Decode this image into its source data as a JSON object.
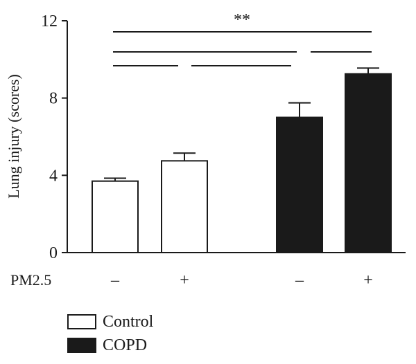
{
  "chart_data": {
    "type": "bar",
    "ylabel": "Lung injury (scores)",
    "ylim": [
      0,
      12
    ],
    "yticks": [
      "0",
      "4",
      "8",
      "12"
    ],
    "ytick_values": [
      0,
      4,
      8,
      12
    ],
    "treatment_label": "PM2.5",
    "categories": [
      "–",
      "+",
      "–",
      "+"
    ],
    "bars": [
      {
        "group": "Control",
        "pm25": "–",
        "value": 3.7,
        "error": 0.15,
        "fill": "#ffffff"
      },
      {
        "group": "Control",
        "pm25": "+",
        "value": 4.75,
        "error": 0.4,
        "fill": "#ffffff"
      },
      {
        "group": "COPD",
        "pm25": "–",
        "value": 7.0,
        "error": 0.75,
        "fill": "#1a1a1a"
      },
      {
        "group": "COPD",
        "pm25": "+",
        "value": 9.25,
        "error": 0.3,
        "fill": "#1a1a1a"
      }
    ],
    "significance": "**",
    "comparisons": [
      {
        "from": 0,
        "to": 3,
        "label": "**"
      },
      {
        "from": 0,
        "to": 2,
        "label": ""
      },
      {
        "from": 2,
        "to": 3,
        "label": ""
      },
      {
        "from": 0,
        "to": 1,
        "label": ""
      },
      {
        "from": 1,
        "to": 2,
        "label": ""
      }
    ],
    "legend": [
      {
        "label": "Control",
        "fill": "#ffffff"
      },
      {
        "label": "COPD",
        "fill": "#1a1a1a"
      }
    ],
    "legend_position": "bottom-left"
  }
}
